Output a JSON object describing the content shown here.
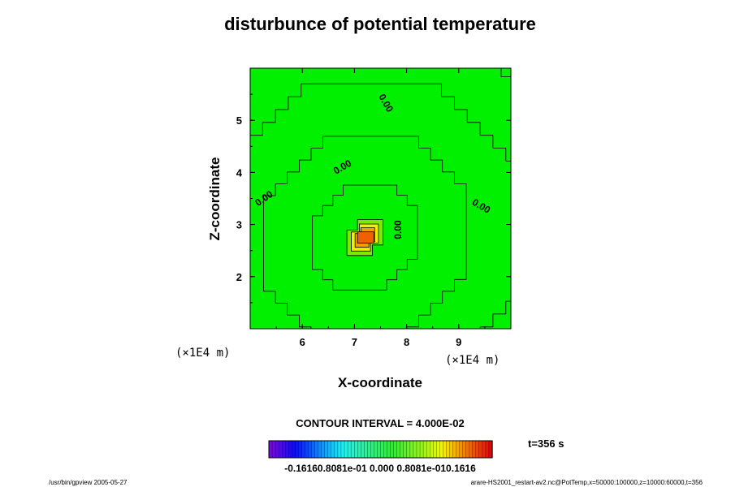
{
  "chart_data": {
    "type": "contour",
    "title": "disturbunce of potential temperature",
    "xlabel": "X-coordinate",
    "ylabel": "Z-coordinate",
    "x_unit": "(×1E4 m)",
    "y_unit": "(×1E4 m)",
    "xlim": [
      5.0,
      10.0
    ],
    "ylim": [
      1.0,
      6.0
    ],
    "x_ticks": [
      "6",
      "7",
      "8",
      "9"
    ],
    "y_ticks": [
      "2",
      "3",
      "4",
      "5"
    ],
    "peak": {
      "x": 7.2,
      "z": 2.75,
      "value": 0.16
    },
    "contour_labels": [
      "0.00",
      "0.00",
      "0.00",
      "0.00",
      "0.00"
    ],
    "contour_interval_text": "CONTOUR INTERVAL = 4.000E-02",
    "colorbar_labels_text": "-0.16160.8081e-01 0.000 0.8081e-010.1616",
    "colorbar_range": [
      -0.1616,
      0.1616
    ],
    "time_label": "t=356 s",
    "footer_left": "/usr/bin/gpview 2005-05-27",
    "footer_right": "arare-HS2001_restart-av2.nc@PotTemp,x=50000:100000,z=10000:60000,t=356",
    "grid": false
  }
}
